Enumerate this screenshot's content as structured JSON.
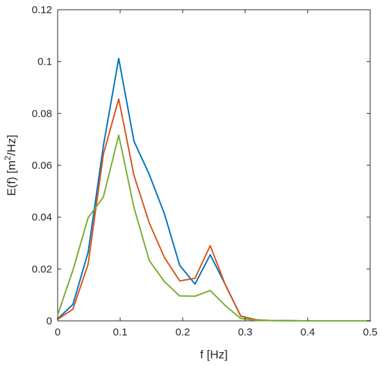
{
  "chart_data": {
    "type": "line",
    "title": "",
    "xlabel": "f [Hz]",
    "ylabel_main": "E(f) [m",
    "ylabel_sup": "2",
    "ylabel_tail": "/Hz]",
    "xlim": [
      0,
      0.5
    ],
    "ylim": [
      0,
      0.12
    ],
    "grid": false,
    "xticks": [
      0,
      0.1,
      0.2,
      0.3,
      0.4,
      0.5
    ],
    "xtick_labels": [
      "0",
      "0.1",
      "0.2",
      "0.3",
      "0.4",
      "0.5"
    ],
    "yticks": [
      0,
      0.02,
      0.04,
      0.06,
      0.08,
      0.1,
      0.12
    ],
    "ytick_labels": [
      "0",
      "0.02",
      "0.04",
      "0.06",
      "0.08",
      "0.1",
      "0.12"
    ],
    "x": [
      0,
      0.0244,
      0.0488,
      0.0732,
      0.0977,
      0.1221,
      0.1465,
      0.1709,
      0.1953,
      0.2197,
      0.2441,
      0.2686,
      0.293,
      0.3174,
      0.3418,
      0.3662,
      0.3906,
      0.415,
      0.4395,
      0.4639,
      0.4883,
      0.5
    ],
    "series": [
      {
        "color": "#0072BD",
        "values": [
          0.0008,
          0.0063,
          0.0265,
          0.0676,
          0.1012,
          0.0693,
          0.0565,
          0.0412,
          0.0214,
          0.0142,
          0.0255,
          0.0138,
          0.0018,
          0.0004,
          0.0001,
          0.0001,
          0,
          0,
          0,
          0,
          0,
          0
        ]
      },
      {
        "color": "#D95319",
        "values": [
          0.0006,
          0.0045,
          0.0219,
          0.0643,
          0.0856,
          0.0561,
          0.0378,
          0.0244,
          0.0154,
          0.0164,
          0.029,
          0.0137,
          0.0018,
          0.0004,
          0.0001,
          0.0001,
          0,
          0,
          0,
          0,
          0,
          0
        ]
      },
      {
        "color": "#77AC30",
        "values": [
          0.0023,
          0.0195,
          0.0398,
          0.0478,
          0.0716,
          0.0437,
          0.0233,
          0.0151,
          0.0096,
          0.0095,
          0.0117,
          0.0058,
          0.0009,
          0.0002,
          0.0001,
          0,
          0,
          0,
          0,
          0,
          0,
          0
        ]
      }
    ]
  }
}
